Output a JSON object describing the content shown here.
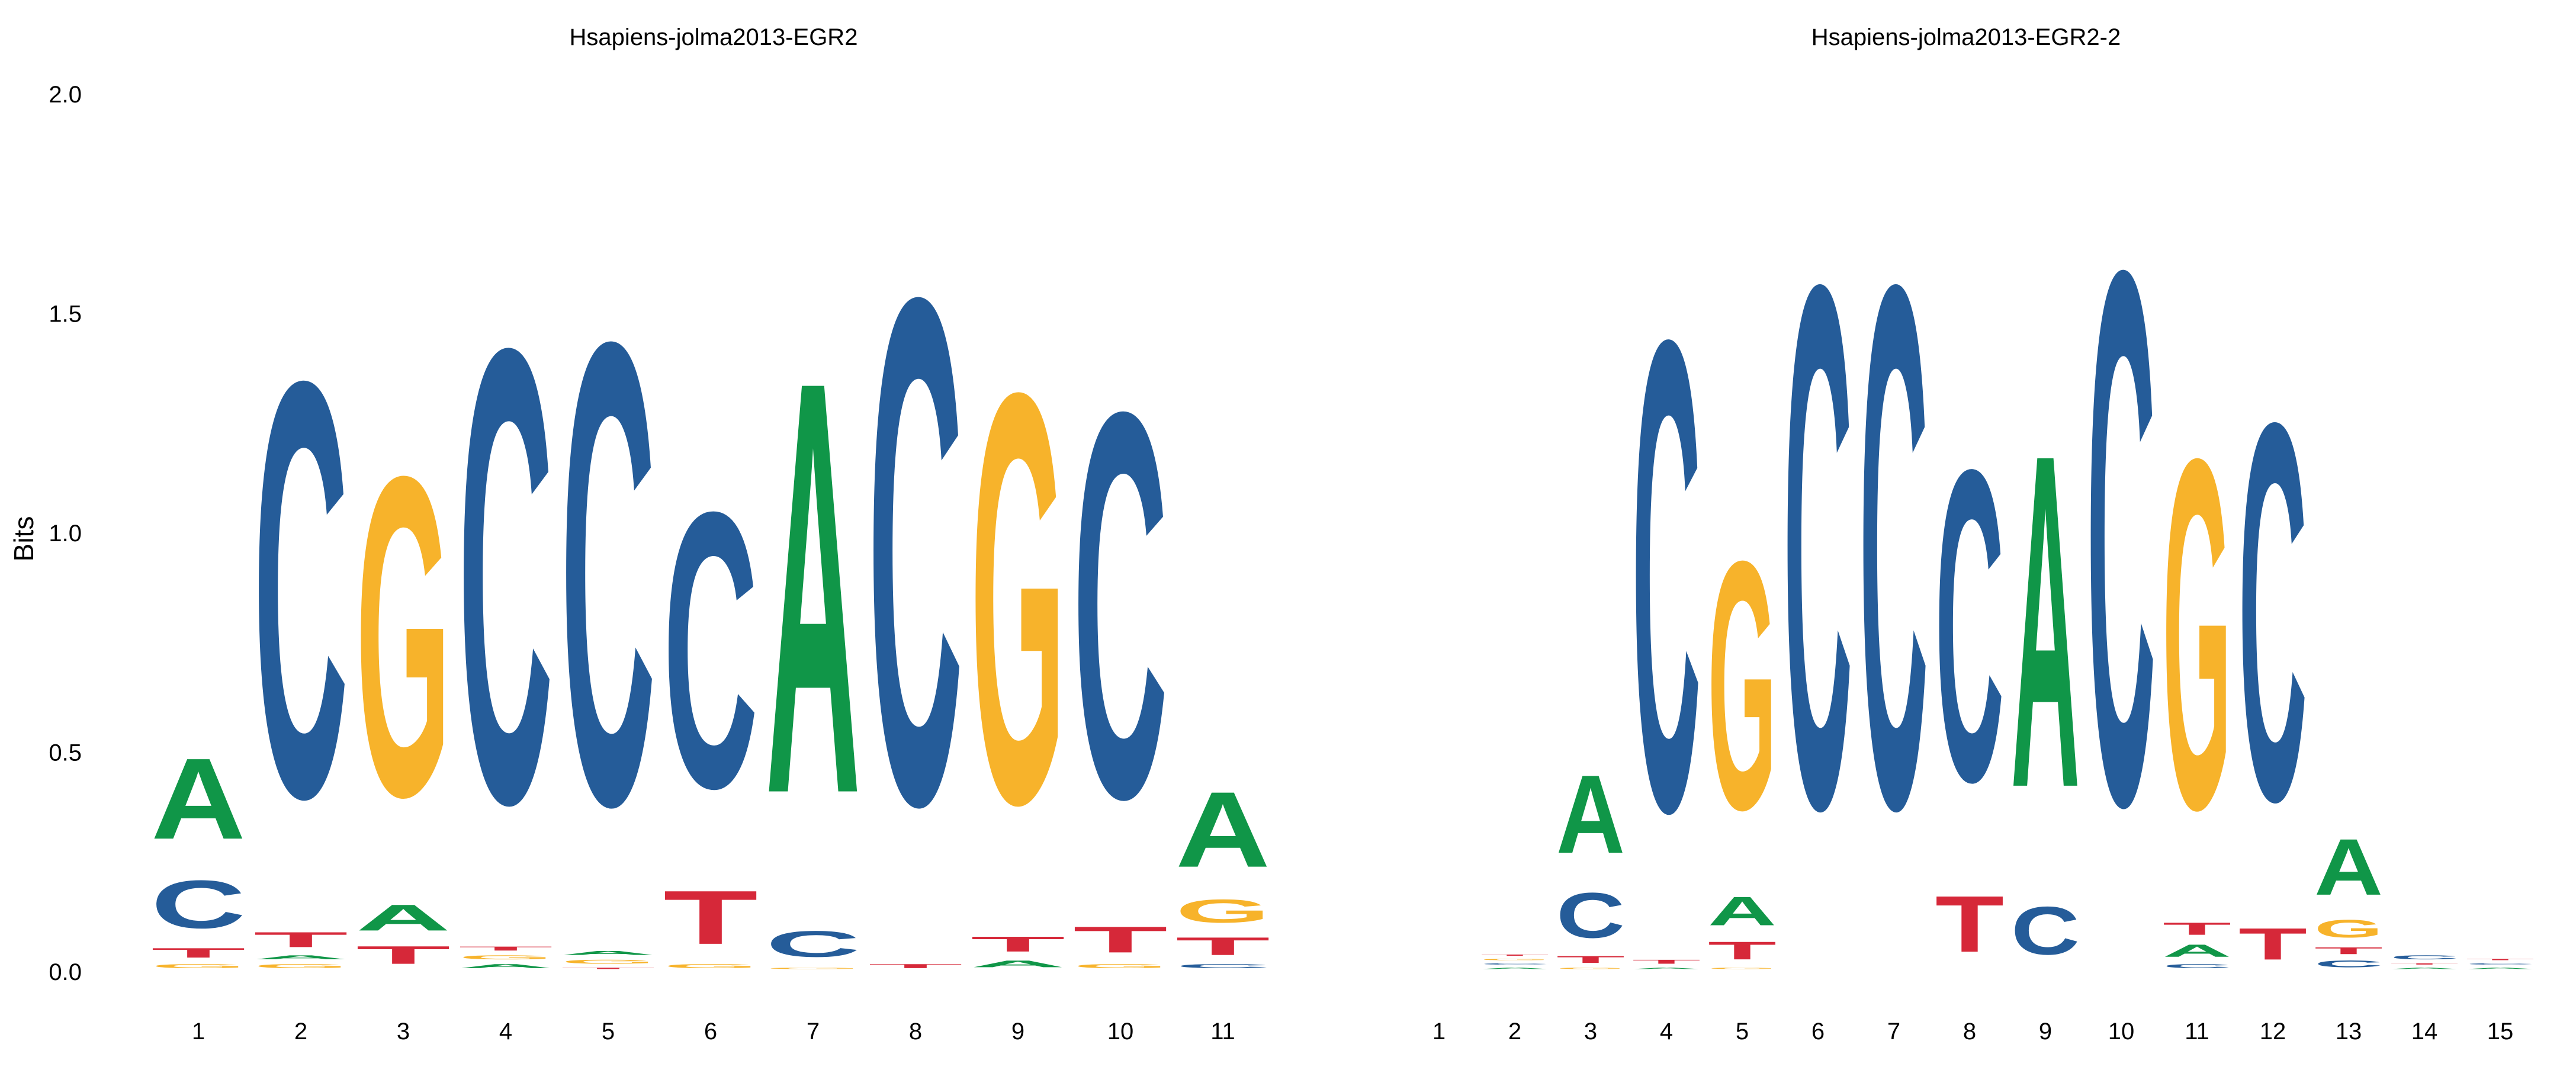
{
  "colors": {
    "A": "#109648",
    "C": "#255C99",
    "G": "#F7B32B",
    "T": "#D62839"
  },
  "y_axis_label": "Bits",
  "chart_data": [
    {
      "type": "sequence-logo",
      "title": "Hsapiens-jolma2013-EGR2",
      "ylabel": "Bits",
      "ylim": [
        0,
        2
      ],
      "yticks": [
        "0.0",
        "0.5",
        "1.0",
        "1.5",
        "2.0"
      ],
      "positions": [
        {
          "label": "1",
          "stack": [
            [
              "G",
              0.02
            ],
            [
              "T",
              0.04
            ],
            [
              "C",
              0.18
            ],
            [
              "A",
              0.3
            ]
          ]
        },
        {
          "label": "2",
          "stack": [
            [
              "G",
              0.02
            ],
            [
              "A",
              0.02
            ],
            [
              "T",
              0.06
            ],
            [
              "C",
              1.52
            ]
          ]
        },
        {
          "label": "3",
          "stack": [
            [
              "T",
              0.07
            ],
            [
              "A",
              0.1
            ],
            [
              "G",
              1.17
            ]
          ]
        },
        {
          "label": "4",
          "stack": [
            [
              "A",
              0.02
            ],
            [
              "G",
              0.02
            ],
            [
              "T",
              0.02
            ],
            [
              "C",
              1.66
            ]
          ]
        },
        {
          "label": "5",
          "stack": [
            [
              "T",
              0.01
            ],
            [
              "G",
              0.02
            ],
            [
              "A",
              0.02
            ],
            [
              "C",
              1.69
            ]
          ]
        },
        {
          "label": "6",
          "stack": [
            [
              "G",
              0.02
            ],
            [
              "T",
              0.2
            ],
            [
              "C",
              1.01
            ]
          ]
        },
        {
          "label": "7",
          "stack": [
            [
              "G",
              0.01
            ],
            [
              "C",
              0.1
            ],
            [
              "A",
              1.51
            ]
          ]
        },
        {
          "label": "8",
          "stack": [
            [
              "T",
              0.02
            ],
            [
              "C",
              1.85
            ]
          ]
        },
        {
          "label": "9",
          "stack": [
            [
              "A",
              0.03
            ],
            [
              "T",
              0.06
            ],
            [
              "G",
              1.5
            ]
          ]
        },
        {
          "label": "10",
          "stack": [
            [
              "G",
              0.02
            ],
            [
              "T",
              0.1
            ],
            [
              "C",
              1.41
            ]
          ]
        },
        {
          "label": "11",
          "stack": [
            [
              "C",
              0.02
            ],
            [
              "T",
              0.07
            ],
            [
              "G",
              0.09
            ],
            [
              "A",
              0.28
            ]
          ]
        }
      ]
    },
    {
      "type": "sequence-logo",
      "title": "Hsapiens-jolma2013-EGR2-2",
      "ylabel": "",
      "ylim": [
        0,
        2
      ],
      "yticks": [],
      "positions": [
        {
          "label": "1",
          "stack": []
        },
        {
          "label": "2",
          "stack": [
            [
              "A",
              0.01
            ],
            [
              "C",
              0.01
            ],
            [
              "G",
              0.01
            ],
            [
              "T",
              0.01
            ]
          ]
        },
        {
          "label": "3",
          "stack": [
            [
              "G",
              0.01
            ],
            [
              "T",
              0.03
            ],
            [
              "C",
              0.17
            ],
            [
              "A",
              0.29
            ]
          ]
        },
        {
          "label": "4",
          "stack": [
            [
              "A",
              0.01
            ],
            [
              "T",
              0.02
            ],
            [
              "C",
              1.72
            ]
          ]
        },
        {
          "label": "5",
          "stack": [
            [
              "G",
              0.01
            ],
            [
              "T",
              0.07
            ],
            [
              "A",
              0.11
            ],
            [
              "G",
              0.91
            ]
          ]
        },
        {
          "label": "6",
          "stack": [
            [
              "C",
              1.91
            ]
          ]
        },
        {
          "label": "7",
          "stack": [
            [
              "C",
              1.91
            ]
          ]
        },
        {
          "label": "8",
          "stack": [
            [
              "T",
              0.21
            ],
            [
              "C",
              1.14
            ]
          ]
        },
        {
          "label": "9",
          "stack": [
            [
              "C",
              0.18
            ],
            [
              "A",
              1.22
            ]
          ]
        },
        {
          "label": "10",
          "stack": [
            [
              "C",
              1.95
            ]
          ]
        },
        {
          "label": "11",
          "stack": [
            [
              "C",
              0.02
            ],
            [
              "A",
              0.05
            ],
            [
              "T",
              0.05
            ],
            [
              "G",
              1.28
            ]
          ]
        },
        {
          "label": "12",
          "stack": [
            [
              "T",
              0.12
            ],
            [
              "C",
              1.38
            ]
          ]
        },
        {
          "label": "13",
          "stack": [
            [
              "C",
              0.03
            ],
            [
              "T",
              0.03
            ],
            [
              "G",
              0.07
            ],
            [
              "A",
              0.21
            ]
          ]
        },
        {
          "label": "14",
          "stack": [
            [
              "A",
              0.01
            ],
            [
              "T",
              0.01
            ],
            [
              "C",
              0.02
            ]
          ]
        },
        {
          "label": "15",
          "stack": [
            [
              "A",
              0.01
            ],
            [
              "C",
              0.01
            ],
            [
              "T",
              0.01
            ]
          ]
        }
      ]
    }
  ]
}
